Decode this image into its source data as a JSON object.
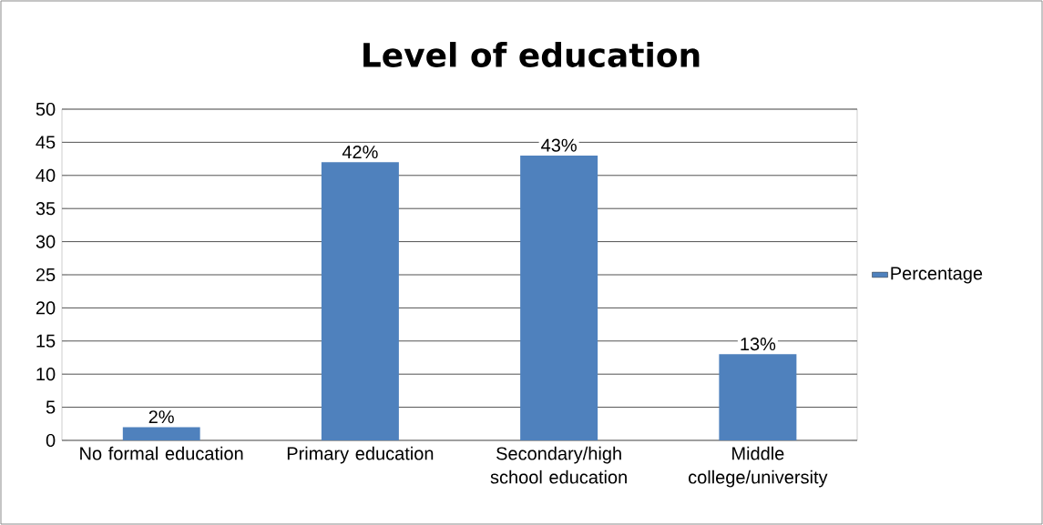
{
  "chart_data": {
    "type": "bar",
    "title": "Level of education",
    "categories": [
      "No formal education",
      "Primary education",
      "Secondary/high school education",
      "Middle college/university"
    ],
    "series": [
      {
        "name": "Percentage",
        "color": "#4f81bd",
        "values": [
          2,
          42,
          43,
          13
        ],
        "value_labels": [
          "2%",
          "42%",
          "43%",
          "13%"
        ]
      }
    ],
    "ylim": [
      0,
      50
    ],
    "yticks": [
      0,
      5,
      10,
      15,
      20,
      25,
      30,
      35,
      40,
      45,
      50
    ],
    "grid": "y",
    "legend": "right"
  }
}
